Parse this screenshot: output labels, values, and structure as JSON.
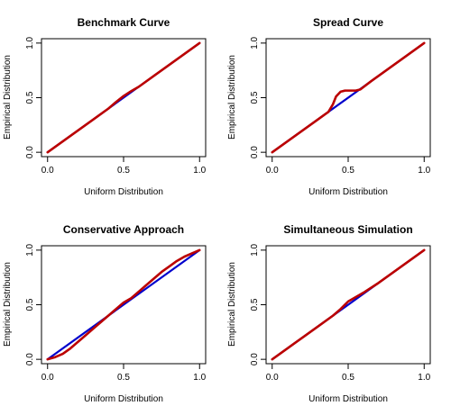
{
  "chart_data": [
    {
      "type": "line",
      "title": "Benchmark Curve",
      "xlabel": "Uniform Distribution",
      "ylabel": "Empirical Distribution",
      "xlim": [
        0,
        1
      ],
      "ylim": [
        0,
        1
      ],
      "xticks": [
        "0.0",
        "0.5",
        "1.0"
      ],
      "yticks": [
        "0.0",
        "0.5",
        "1.0"
      ],
      "grid": false,
      "series": [
        {
          "color": "#0000cc",
          "x": [
            0,
            1
          ],
          "y": [
            0,
            1
          ]
        },
        {
          "color": "#bb0000",
          "x": [
            0,
            0.1,
            0.2,
            0.3,
            0.4,
            0.45,
            0.5,
            0.55,
            0.6,
            0.7,
            0.8,
            0.9,
            1.0
          ],
          "y": [
            0,
            0.1,
            0.2,
            0.3,
            0.4,
            0.46,
            0.515,
            0.56,
            0.6,
            0.7,
            0.8,
            0.9,
            1.0
          ]
        }
      ]
    },
    {
      "type": "line",
      "title": "Spread Curve",
      "xlabel": "Uniform Distribution",
      "ylabel": "Empirical Distribution",
      "xlim": [
        0,
        1
      ],
      "ylim": [
        0,
        1
      ],
      "xticks": [
        "0.0",
        "0.5",
        "1.0"
      ],
      "yticks": [
        "0.0",
        "0.5",
        "1.0"
      ],
      "grid": false,
      "series": [
        {
          "color": "#0000cc",
          "x": [
            0,
            1
          ],
          "y": [
            0,
            1
          ]
        },
        {
          "color": "#bb0000",
          "x": [
            0,
            0.1,
            0.2,
            0.3,
            0.37,
            0.4,
            0.42,
            0.45,
            0.48,
            0.55,
            0.58,
            0.65,
            0.75,
            0.85,
            1.0
          ],
          "y": [
            0,
            0.1,
            0.2,
            0.3,
            0.37,
            0.44,
            0.51,
            0.555,
            0.565,
            0.565,
            0.575,
            0.65,
            0.75,
            0.85,
            1.0
          ]
        }
      ]
    },
    {
      "type": "line",
      "title": "Conservative Approach",
      "xlabel": "Uniform Distribution",
      "ylabel": "Empirical Distribution",
      "xlim": [
        0,
        1
      ],
      "ylim": [
        0,
        1
      ],
      "xticks": [
        "0.0",
        "0.5",
        "1.0"
      ],
      "yticks": [
        "0.0",
        "0.5",
        "1.0"
      ],
      "grid": false,
      "series": [
        {
          "color": "#0000cc",
          "x": [
            0,
            1
          ],
          "y": [
            0,
            1
          ]
        },
        {
          "color": "#bb0000",
          "x": [
            0,
            0.05,
            0.1,
            0.15,
            0.2,
            0.25,
            0.3,
            0.35,
            0.4,
            0.45,
            0.5,
            0.55,
            0.6,
            0.65,
            0.7,
            0.75,
            0.8,
            0.85,
            0.9,
            0.95,
            1.0
          ],
          "y": [
            0,
            0.02,
            0.05,
            0.1,
            0.16,
            0.22,
            0.28,
            0.34,
            0.4,
            0.46,
            0.52,
            0.56,
            0.62,
            0.68,
            0.74,
            0.8,
            0.85,
            0.9,
            0.94,
            0.97,
            1.0
          ]
        }
      ]
    },
    {
      "type": "line",
      "title": "Simultaneous Simulation",
      "xlabel": "Uniform Distribution",
      "ylabel": "Empirical Distribution",
      "xlim": [
        0,
        1
      ],
      "ylim": [
        0,
        1
      ],
      "xticks": [
        "0.0",
        "0.5",
        "1.0"
      ],
      "yticks": [
        "0.0",
        "0.5",
        "1.0"
      ],
      "grid": false,
      "series": [
        {
          "color": "#0000cc",
          "x": [
            0,
            1
          ],
          "y": [
            0,
            1
          ]
        },
        {
          "color": "#bb0000",
          "x": [
            0,
            0.1,
            0.2,
            0.3,
            0.4,
            0.45,
            0.5,
            0.55,
            0.6,
            0.7,
            0.8,
            0.9,
            1.0
          ],
          "y": [
            0,
            0.1,
            0.2,
            0.3,
            0.4,
            0.46,
            0.53,
            0.57,
            0.61,
            0.7,
            0.8,
            0.9,
            1.0
          ]
        }
      ]
    }
  ]
}
